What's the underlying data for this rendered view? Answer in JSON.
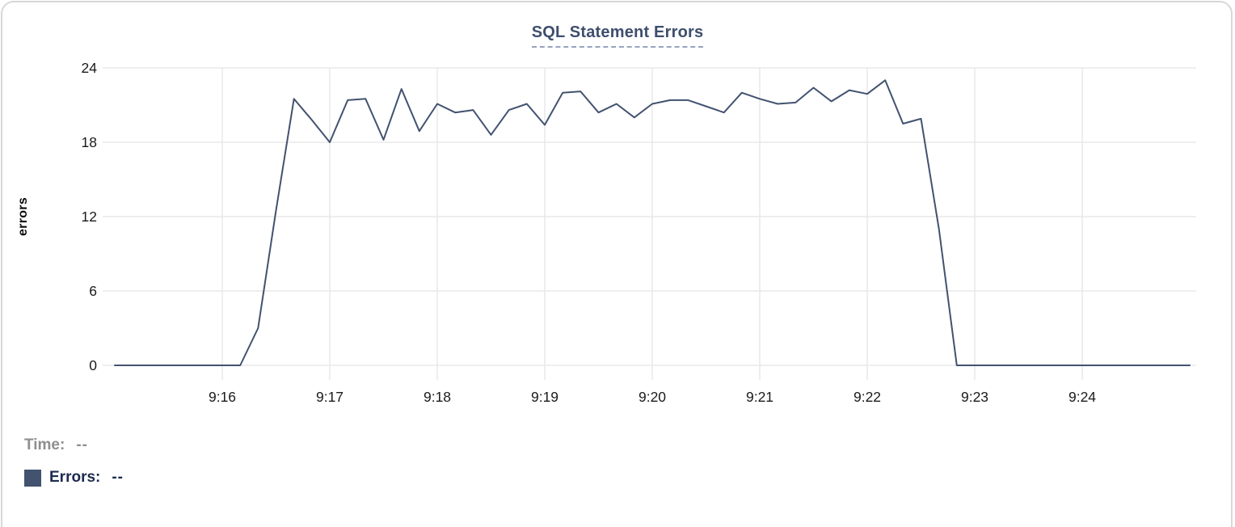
{
  "header": {
    "title": "SQL Statement Errors"
  },
  "chart_data": {
    "type": "line",
    "title": "SQL Statement Errors",
    "xlabel": "",
    "ylabel": "errors",
    "x_start_time": "9:15:00",
    "x_end_time": "9:25:00",
    "x_interval_seconds": 10,
    "x_total_seconds": 600,
    "x_tick_start_seconds": 60,
    "x_tick_step_seconds": 60,
    "x_tick_labels": [
      "9:16",
      "9:17",
      "9:18",
      "9:19",
      "9:20",
      "9:21",
      "9:22",
      "9:23",
      "9:24"
    ],
    "y_ticks": [
      0,
      6,
      12,
      18,
      24
    ],
    "ylim": [
      0,
      24
    ],
    "grid": true,
    "legend_position": "bottom-left",
    "series": [
      {
        "name": "Errors",
        "color": "#42526f",
        "values": [
          0,
          0,
          0,
          0,
          0,
          0,
          0,
          0,
          3,
          12.5,
          21.5,
          19.8,
          18,
          21.4,
          21.5,
          18.2,
          22.3,
          18.9,
          21.1,
          20.4,
          20.6,
          18.6,
          20.6,
          21.1,
          19.4,
          22,
          22.1,
          20.4,
          21.1,
          20,
          21.1,
          21.4,
          21.4,
          20.9,
          20.4,
          22,
          21.5,
          21.1,
          21.2,
          22.4,
          21.3,
          22.2,
          21.9,
          23,
          19.5,
          19.9,
          11,
          0,
          0,
          0,
          0,
          0,
          0,
          0,
          0,
          0,
          0,
          0,
          0,
          0,
          0
        ]
      }
    ]
  },
  "legend": {
    "time_label": "Time:",
    "time_value": "--",
    "errors_label": "Errors:",
    "errors_value": "--",
    "errors_swatch_color": "#42526f"
  },
  "colors": {
    "title": "#3e4e6e",
    "title_underline": "#97a4bd",
    "grid": "#e8e8e8",
    "axis_text": "#1a1a1a",
    "line": "#42526f",
    "time_text": "#8e8e8e",
    "errors_text": "#1c2a4d",
    "card_border": "#d8d8d8"
  }
}
